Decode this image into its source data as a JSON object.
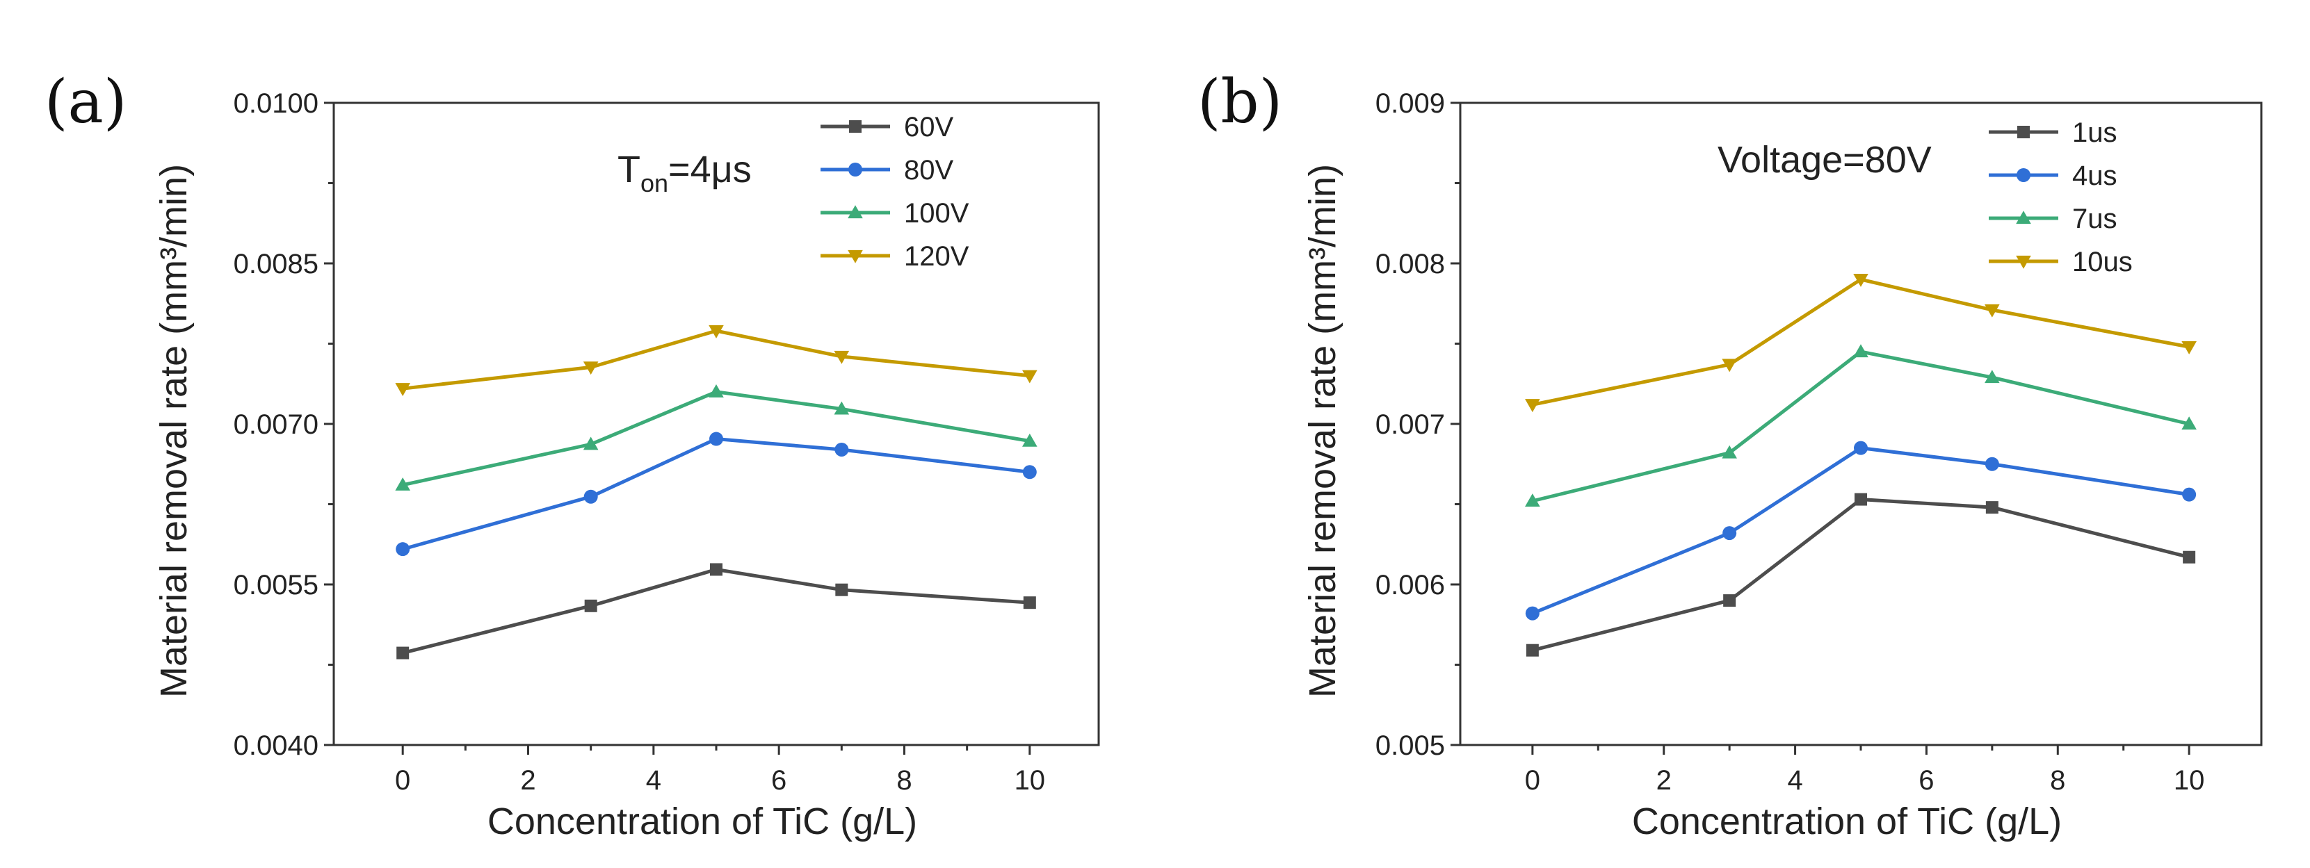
{
  "chart_data": [
    {
      "type": "line",
      "panel_label": "(a)",
      "annotation": {
        "main": "T",
        "sub": "on",
        "rest": "=4μs"
      },
      "xlabel": "Concentration of TiC (g/L)",
      "ylabel": "Material removal rate (mm³/min)",
      "xlim": [
        -1.1,
        11.1
      ],
      "ylim": [
        0.004,
        0.01
      ],
      "x_ticks": [
        0,
        2,
        4,
        6,
        8,
        10
      ],
      "x_tick_labels": [
        "0",
        "2",
        "4",
        "6",
        "8",
        "10"
      ],
      "y_ticks": [
        0.004,
        0.0055,
        0.007,
        0.0085,
        0.01
      ],
      "y_tick_labels": [
        "0.0040",
        "0.0055",
        "0.0070",
        "0.0085",
        "0.0100"
      ],
      "legend_position": "top-right",
      "x": [
        0,
        3,
        5,
        7,
        10
      ],
      "series": [
        {
          "name": "60V",
          "color": "#4d4d4d",
          "marker": "square",
          "values": [
            0.00486,
            0.0053,
            0.00564,
            0.00545,
            0.00533
          ]
        },
        {
          "name": "80V",
          "color": "#2f6fd6",
          "marker": "circle",
          "values": [
            0.00583,
            0.00632,
            0.00686,
            0.00676,
            0.00655
          ]
        },
        {
          "name": "100V",
          "color": "#3cab78",
          "marker": "triangle-up",
          "values": [
            0.00643,
            0.00681,
            0.0073,
            0.00714,
            0.00684
          ]
        },
        {
          "name": "120V",
          "color": "#c49a00",
          "marker": "triangle-down",
          "values": [
            0.00733,
            0.00753,
            0.00787,
            0.00763,
            0.00745
          ]
        }
      ]
    },
    {
      "type": "line",
      "panel_label": "(b)",
      "annotation": {
        "main": "Voltage=80V",
        "sub": "",
        "rest": ""
      },
      "xlabel": "Concentration of TiC (g/L)",
      "ylabel": "Material removal rate (mm³/min)",
      "xlim": [
        -1.1,
        11.1
      ],
      "ylim": [
        0.005,
        0.009
      ],
      "x_ticks": [
        0,
        2,
        4,
        6,
        8,
        10
      ],
      "x_tick_labels": [
        "0",
        "2",
        "4",
        "6",
        "8",
        "10"
      ],
      "y_ticks": [
        0.005,
        0.006,
        0.007,
        0.008,
        0.009
      ],
      "y_tick_labels": [
        "0.005",
        "0.006",
        "0.007",
        "0.008",
        "0.009"
      ],
      "legend_position": "top-right",
      "x": [
        0,
        3,
        5,
        7,
        10
      ],
      "series": [
        {
          "name": "1us",
          "color": "#4d4d4d",
          "marker": "square",
          "values": [
            0.00559,
            0.0059,
            0.00653,
            0.00648,
            0.00617
          ]
        },
        {
          "name": "4us",
          "color": "#2f6fd6",
          "marker": "circle",
          "values": [
            0.00582,
            0.00632,
            0.00685,
            0.00675,
            0.00656
          ]
        },
        {
          "name": "7us",
          "color": "#3cab78",
          "marker": "triangle-up",
          "values": [
            0.00652,
            0.00682,
            0.00745,
            0.00729,
            0.007
          ]
        },
        {
          "name": "10us",
          "color": "#c49a00",
          "marker": "triangle-down",
          "values": [
            0.00712,
            0.00737,
            0.0079,
            0.00771,
            0.00748
          ]
        }
      ]
    }
  ]
}
